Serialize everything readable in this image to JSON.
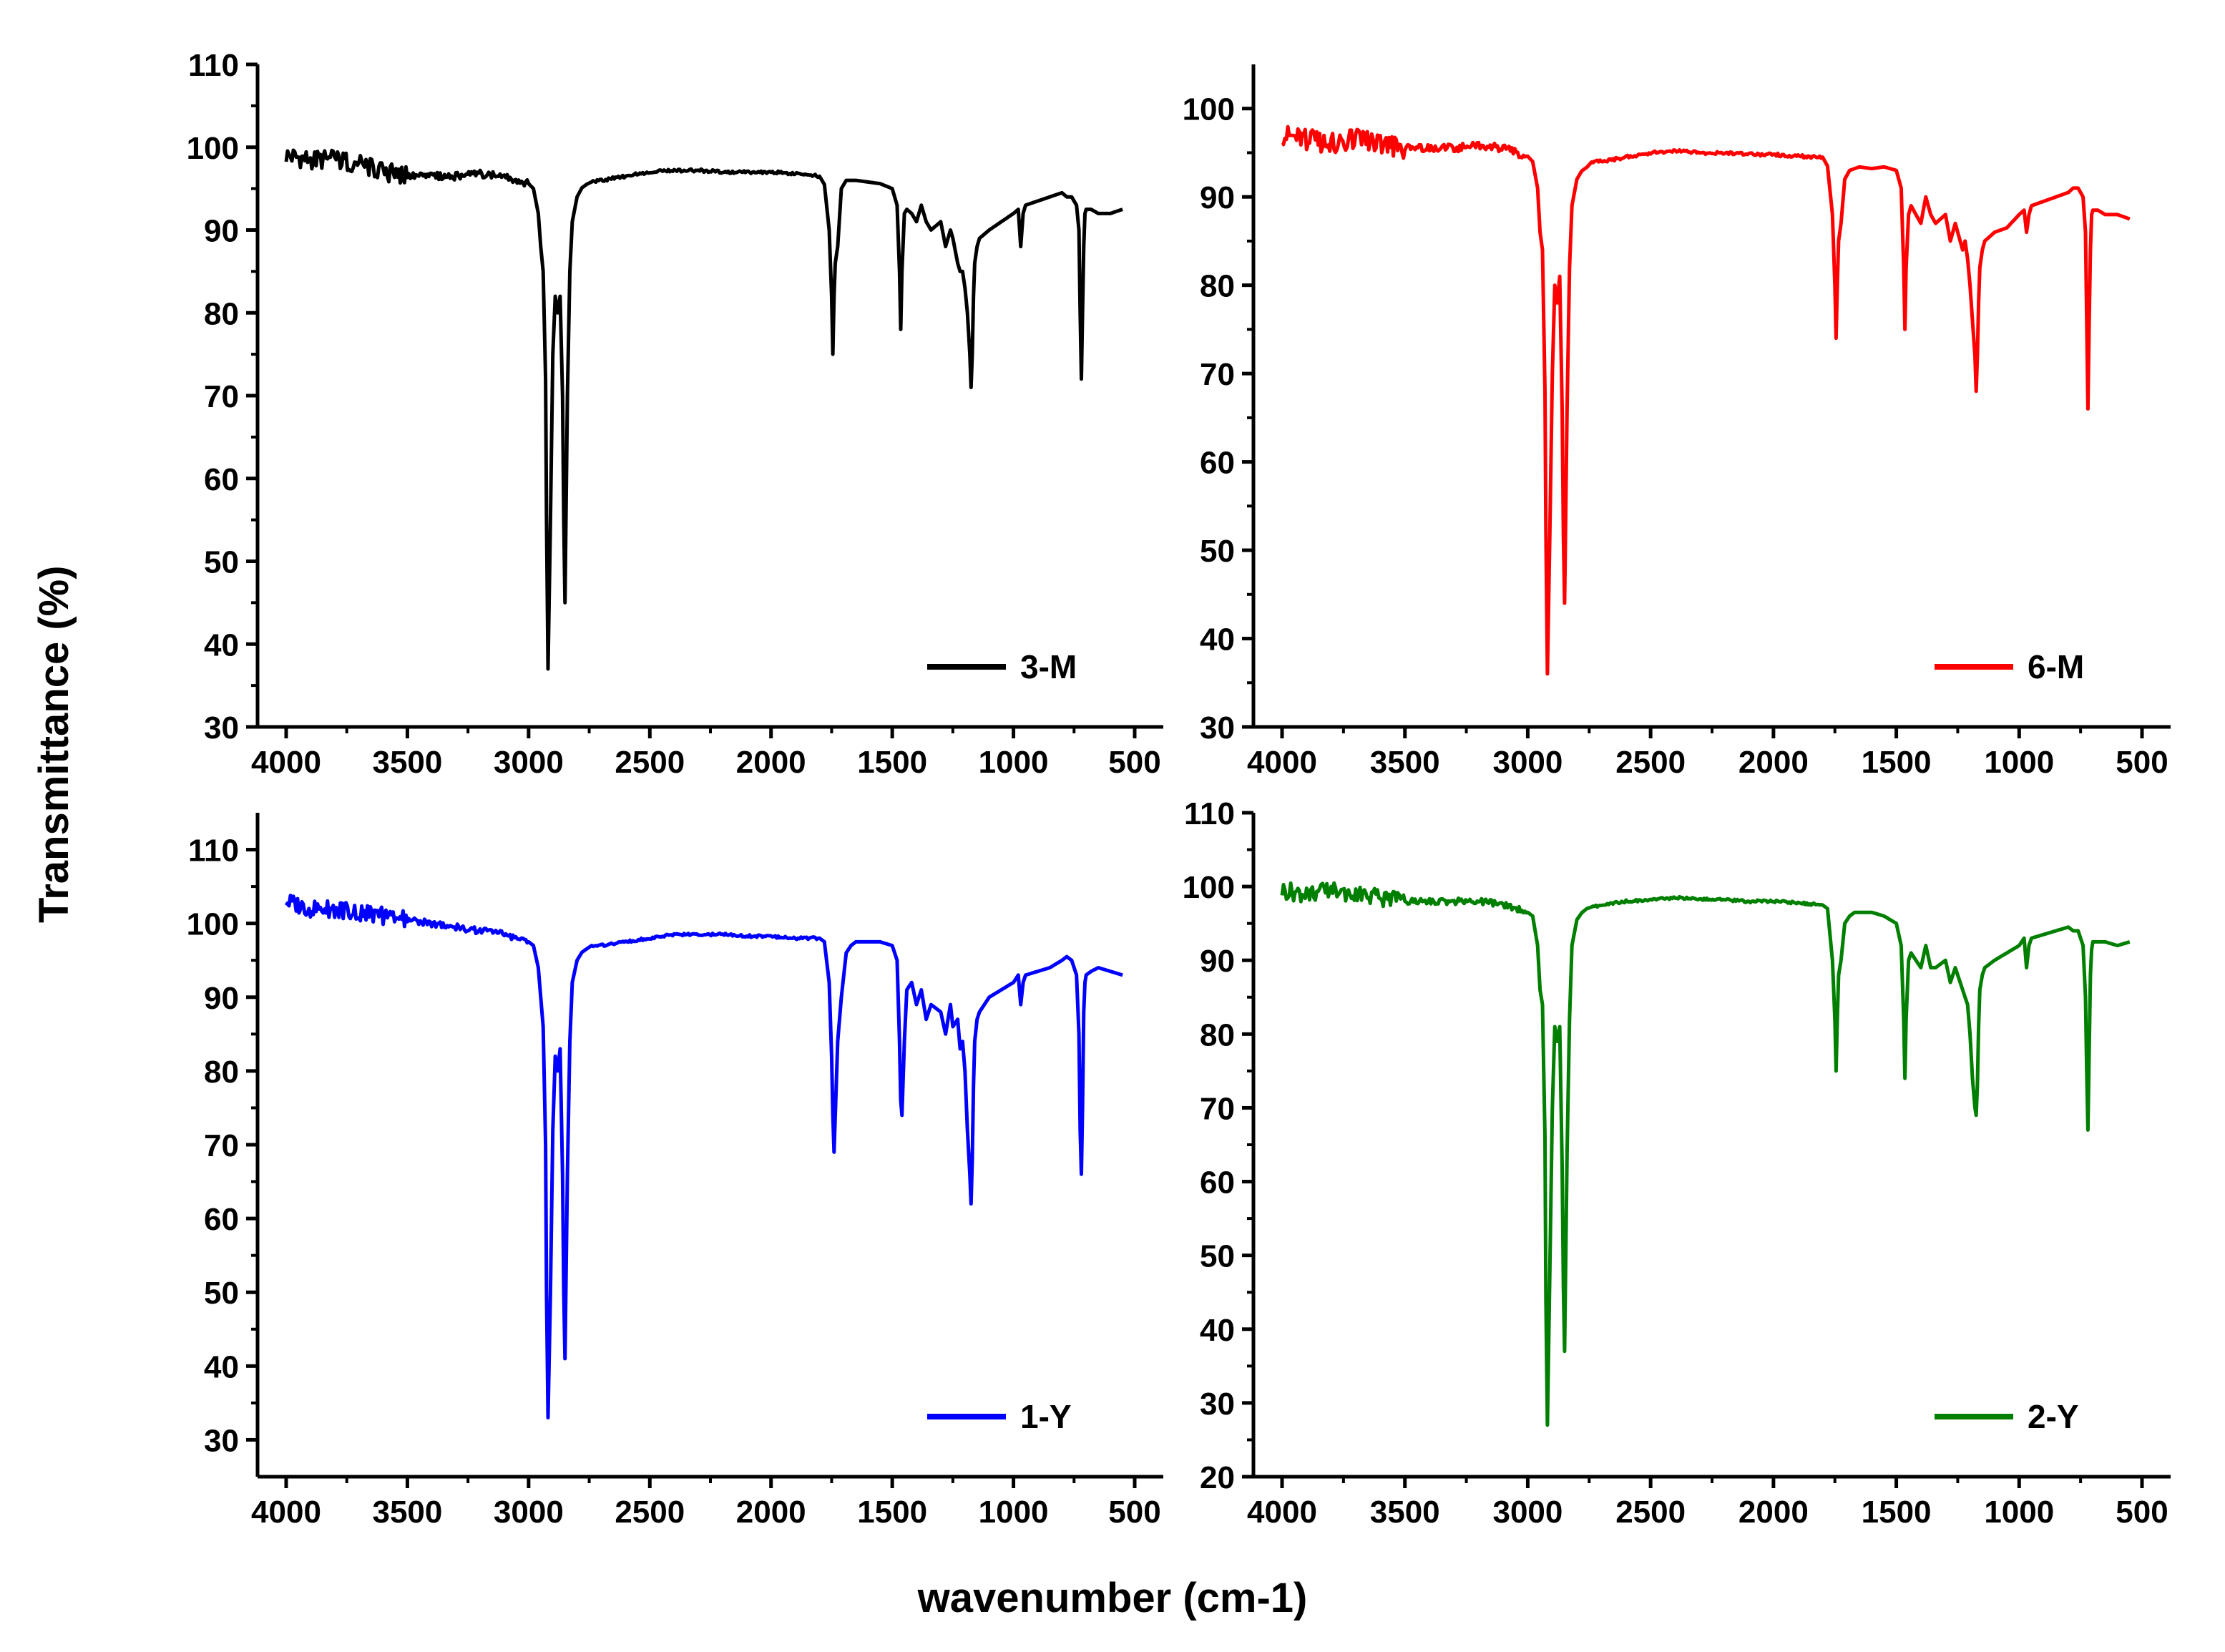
{
  "figure": {
    "ylabel": "Transmittance (%)",
    "xlabel": "wavenumber (cm-1)"
  },
  "chart_data": [
    {
      "type": "line",
      "legend": "3-M",
      "color": "#000000",
      "xlim": [
        4000,
        500
      ],
      "ylim": [
        30,
        110
      ],
      "xticks": [
        4000,
        3500,
        3000,
        2500,
        2000,
        1500,
        1000,
        500
      ],
      "yticks": [
        30,
        40,
        50,
        60,
        70,
        80,
        90,
        100,
        110
      ],
      "x": [
        4000,
        3900,
        3800,
        3700,
        3600,
        3500,
        3400,
        3300,
        3200,
        3100,
        3000,
        2980,
        2960,
        2950,
        2940,
        2930,
        2926,
        2920,
        2910,
        2900,
        2890,
        2880,
        2870,
        2860,
        2855,
        2850,
        2840,
        2830,
        2820,
        2800,
        2780,
        2760,
        2740,
        2700,
        2600,
        2500,
        2400,
        2300,
        2200,
        2100,
        2000,
        1900,
        1800,
        1780,
        1760,
        1750,
        1745,
        1740,
        1735,
        1725,
        1710,
        1690,
        1670,
        1650,
        1600,
        1550,
        1500,
        1480,
        1470,
        1465,
        1460,
        1450,
        1440,
        1420,
        1400,
        1380,
        1360,
        1340,
        1300,
        1280,
        1260,
        1250,
        1230,
        1220,
        1210,
        1200,
        1190,
        1180,
        1175,
        1170,
        1165,
        1160,
        1150,
        1140,
        1120,
        1100,
        1050,
        1000,
        980,
        970,
        960,
        950,
        900,
        850,
        800,
        780,
        760,
        740,
        730,
        725,
        720,
        715,
        710,
        705,
        700,
        680,
        650,
        600,
        550
      ],
      "y": [
        99,
        98.5,
        98.5,
        98,
        97,
        96.5,
        96.5,
        96.5,
        96.8,
        96.5,
        95.6,
        95,
        92,
        88,
        85,
        72,
        55,
        37,
        55,
        75,
        82,
        80,
        82,
        70,
        55,
        45,
        70,
        85,
        91,
        94,
        95,
        95.5,
        95.8,
        96,
        96.5,
        97,
        97.2,
        97.2,
        97,
        97,
        97,
        96.8,
        96.5,
        95.5,
        90,
        82,
        75,
        82,
        86,
        88,
        95,
        96,
        96,
        96,
        95.8,
        95.6,
        95,
        93,
        85,
        78,
        85,
        92,
        92.5,
        92,
        91,
        93,
        91,
        90,
        91,
        88,
        90,
        89,
        86,
        85,
        85,
        83,
        80,
        75,
        71,
        75,
        82,
        86,
        88,
        89,
        89.5,
        90,
        91,
        92,
        92.5,
        88,
        92,
        93,
        93.5,
        94,
        94.5,
        94,
        94,
        93,
        90,
        80,
        72,
        80,
        88,
        92,
        92.5,
        92.5,
        92,
        92,
        92.5
      ]
    },
    {
      "type": "line",
      "legend": "6-M",
      "color": "#ff0000",
      "xlim": [
        4000,
        500
      ],
      "ylim": [
        30,
        105
      ],
      "xticks": [
        4000,
        3500,
        3000,
        2500,
        2000,
        1500,
        1000,
        500
      ],
      "yticks": [
        30,
        40,
        50,
        60,
        70,
        80,
        90,
        100
      ],
      "x": [
        4000,
        3900,
        3800,
        3700,
        3600,
        3500,
        3400,
        3300,
        3200,
        3100,
        3000,
        2980,
        2960,
        2950,
        2940,
        2930,
        2926,
        2920,
        2910,
        2900,
        2890,
        2880,
        2870,
        2860,
        2855,
        2850,
        2840,
        2830,
        2820,
        2800,
        2780,
        2760,
        2740,
        2700,
        2600,
        2500,
        2400,
        2300,
        2200,
        2100,
        2000,
        1900,
        1800,
        1780,
        1760,
        1750,
        1745,
        1740,
        1735,
        1725,
        1710,
        1690,
        1670,
        1650,
        1600,
        1550,
        1500,
        1480,
        1470,
        1465,
        1460,
        1450,
        1440,
        1420,
        1400,
        1380,
        1360,
        1340,
        1300,
        1280,
        1260,
        1250,
        1230,
        1220,
        1210,
        1200,
        1190,
        1180,
        1175,
        1170,
        1165,
        1160,
        1150,
        1140,
        1120,
        1100,
        1050,
        1000,
        980,
        970,
        960,
        950,
        900,
        850,
        800,
        780,
        760,
        740,
        730,
        725,
        720,
        715,
        710,
        705,
        700,
        680,
        650,
        600,
        550
      ],
      "y": [
        97,
        96.5,
        96,
        96.5,
        96,
        95.5,
        95.5,
        95.5,
        95.8,
        95.5,
        94.6,
        94,
        91,
        86,
        84,
        68,
        52,
        36,
        52,
        70,
        80,
        78,
        81,
        66,
        52,
        44,
        66,
        82,
        89,
        92,
        93,
        93.5,
        94,
        94,
        94.5,
        95,
        95.2,
        95,
        95,
        94.8,
        94.8,
        94.6,
        94.5,
        93.5,
        88,
        80,
        74,
        80,
        85,
        87,
        92,
        93,
        93.2,
        93.4,
        93.2,
        93.4,
        93,
        91,
        82,
        75,
        82,
        88,
        89,
        88,
        87,
        90,
        88,
        87,
        88,
        85,
        87,
        86,
        84,
        85,
        83,
        80,
        76,
        72,
        68,
        72,
        78,
        82,
        84,
        85,
        85.5,
        86,
        86.5,
        88,
        88.5,
        86,
        88,
        89,
        89.5,
        90,
        90.5,
        91,
        91,
        90,
        86,
        76,
        66,
        76,
        84,
        88,
        88.5,
        88.5,
        88,
        88,
        87.5
      ]
    },
    {
      "type": "line",
      "legend": "1-Y",
      "color": "#0000ff",
      "xlim": [
        4000,
        500
      ],
      "ylim": [
        25,
        115
      ],
      "xticks": [
        4000,
        3500,
        3000,
        2500,
        2000,
        1500,
        1000,
        500
      ],
      "yticks": [
        30,
        40,
        50,
        60,
        70,
        80,
        90,
        100,
        110
      ],
      "x": [
        4000,
        3900,
        3800,
        3700,
        3600,
        3500,
        3400,
        3300,
        3200,
        3100,
        3000,
        2980,
        2960,
        2950,
        2940,
        2930,
        2926,
        2920,
        2910,
        2900,
        2890,
        2880,
        2870,
        2860,
        2855,
        2850,
        2840,
        2830,
        2820,
        2800,
        2780,
        2760,
        2740,
        2700,
        2600,
        2500,
        2400,
        2300,
        2200,
        2100,
        2000,
        1900,
        1800,
        1780,
        1760,
        1750,
        1745,
        1740,
        1735,
        1725,
        1710,
        1690,
        1670,
        1650,
        1600,
        1550,
        1500,
        1480,
        1470,
        1465,
        1460,
        1450,
        1440,
        1420,
        1400,
        1380,
        1360,
        1340,
        1300,
        1280,
        1260,
        1250,
        1230,
        1220,
        1210,
        1200,
        1190,
        1180,
        1175,
        1170,
        1165,
        1160,
        1150,
        1140,
        1120,
        1100,
        1050,
        1000,
        980,
        970,
        960,
        950,
        900,
        850,
        800,
        780,
        760,
        740,
        730,
        725,
        720,
        715,
        710,
        705,
        700,
        680,
        650,
        600,
        550
      ],
      "y": [
        103,
        102,
        102,
        101.5,
        101,
        100.5,
        100,
        99.5,
        99,
        98.5,
        97.5,
        97,
        94,
        90,
        86,
        70,
        50,
        33,
        50,
        72,
        82,
        80,
        83,
        66,
        50,
        41,
        66,
        84,
        92,
        95,
        96,
        96.5,
        97,
        97,
        97.5,
        98,
        98.5,
        98.5,
        98.5,
        98.3,
        98.2,
        98,
        98,
        97.5,
        92,
        82,
        74,
        69,
        74,
        84,
        90,
        96,
        97,
        97.5,
        97.5,
        97.5,
        97,
        95,
        84,
        76,
        74,
        84,
        91,
        92,
        89,
        91,
        87,
        89,
        88,
        85,
        89,
        86,
        87,
        83,
        84,
        80,
        72,
        66,
        62,
        68,
        78,
        84,
        87,
        88,
        89,
        90,
        91,
        92,
        93,
        89,
        92,
        93,
        93.5,
        94,
        95,
        95.5,
        95,
        93,
        85,
        72,
        66,
        75,
        88,
        92,
        93,
        93.5,
        94,
        93.5,
        93
      ]
    },
    {
      "type": "line",
      "legend": "2-Y",
      "color": "#007f00",
      "xlim": [
        4000,
        500
      ],
      "ylim": [
        20,
        110
      ],
      "xticks": [
        4000,
        3500,
        3000,
        2500,
        2000,
        1500,
        1000,
        500
      ],
      "yticks": [
        20,
        30,
        40,
        50,
        60,
        70,
        80,
        90,
        100,
        110
      ],
      "x": [
        4000,
        3900,
        3800,
        3700,
        3600,
        3500,
        3400,
        3300,
        3200,
        3100,
        3000,
        2980,
        2960,
        2950,
        2940,
        2930,
        2926,
        2920,
        2910,
        2900,
        2890,
        2880,
        2870,
        2860,
        2855,
        2850,
        2840,
        2830,
        2820,
        2800,
        2780,
        2760,
        2740,
        2700,
        2600,
        2500,
        2400,
        2300,
        2200,
        2100,
        2000,
        1900,
        1800,
        1780,
        1760,
        1750,
        1745,
        1740,
        1735,
        1725,
        1710,
        1690,
        1670,
        1650,
        1600,
        1550,
        1500,
        1480,
        1470,
        1465,
        1460,
        1450,
        1440,
        1420,
        1400,
        1380,
        1360,
        1340,
        1300,
        1280,
        1260,
        1250,
        1230,
        1220,
        1210,
        1200,
        1190,
        1180,
        1175,
        1170,
        1165,
        1160,
        1150,
        1140,
        1120,
        1100,
        1050,
        1000,
        980,
        970,
        960,
        950,
        900,
        850,
        800,
        780,
        760,
        740,
        730,
        725,
        720,
        715,
        710,
        705,
        700,
        680,
        650,
        600,
        550
      ],
      "y": [
        99.5,
        99,
        99.5,
        99,
        98.5,
        98,
        98,
        98,
        98,
        97.5,
        96.5,
        96,
        92,
        86,
        84,
        66,
        44,
        27,
        48,
        70,
        81,
        79,
        81,
        62,
        46,
        37,
        64,
        82,
        92,
        95.5,
        96.5,
        97,
        97.2,
        97.5,
        98,
        98.2,
        98.5,
        98.3,
        98.2,
        98,
        98,
        97.8,
        97.5,
        97,
        90,
        82,
        75,
        82,
        88,
        90,
        95,
        96,
        96.5,
        96.5,
        96.5,
        96,
        95,
        92,
        82,
        74,
        82,
        90,
        91,
        90,
        89,
        92,
        89,
        89,
        90,
        87,
        89,
        88,
        86,
        85,
        84,
        80,
        74,
        70,
        69,
        73,
        81,
        86,
        88,
        89,
        89.5,
        90,
        91,
        92,
        93,
        89,
        92,
        93,
        93.5,
        94,
        94.5,
        94,
        94,
        92,
        85,
        75,
        67,
        78,
        88,
        91.5,
        92.5,
        92.5,
        92.5,
        92,
        92.5
      ]
    }
  ]
}
